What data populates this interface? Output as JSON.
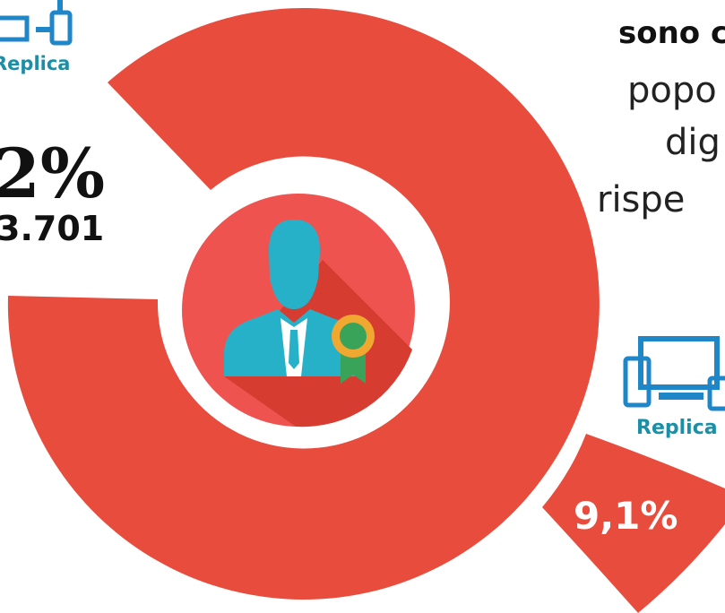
{
  "header": {
    "lines": [
      "sono c",
      "popo",
      "dig",
      "rispe"
    ]
  },
  "left_stat": {
    "percent": "2%",
    "count": "3.701"
  },
  "slice_label": "9,1%",
  "logos": [
    "Replica",
    "Replica"
  ]
}
